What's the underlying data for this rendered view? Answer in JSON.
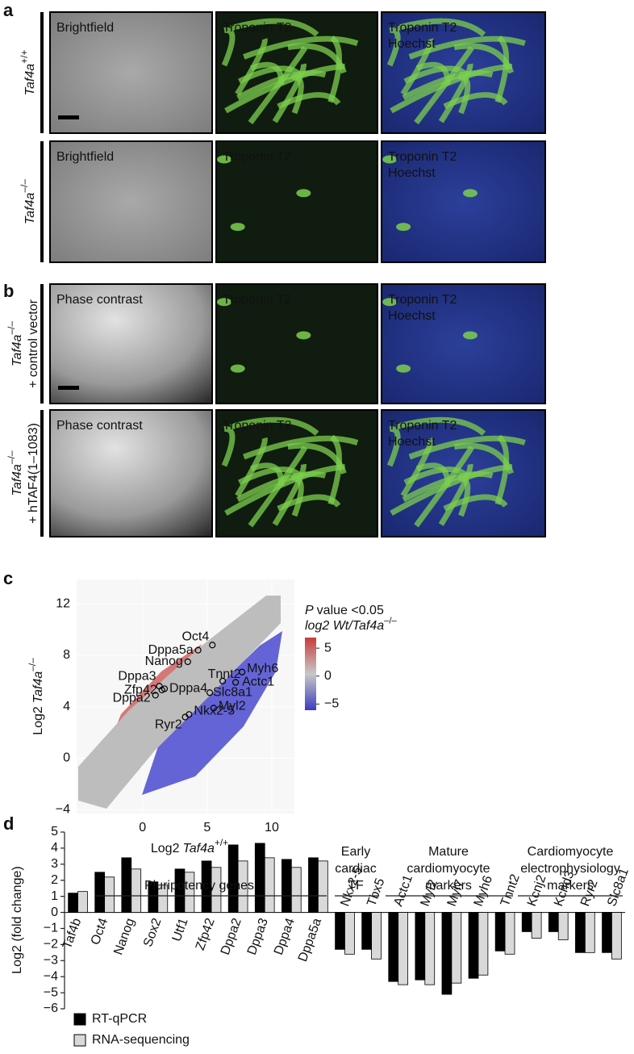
{
  "panels": {
    "a": {
      "label": "a",
      "rows": [
        {
          "genotype": {
            "gene": "Taf4a",
            "sup": "+/+"
          },
          "images": [
            [
              "Brightfield"
            ],
            [
              "Troponin T2"
            ],
            [
              "Troponin T2",
              "Hoechst"
            ]
          ]
        },
        {
          "genotype": {
            "gene": "Taf4a",
            "sup": "–/–"
          },
          "images": [
            [
              "Brightfield"
            ],
            [
              "Troponin T2"
            ],
            [
              "Troponin T2",
              "Hoechst"
            ]
          ]
        }
      ]
    },
    "b": {
      "label": "b",
      "rows": [
        {
          "genotype": {
            "gene": "Taf4a",
            "sup": "–/–"
          },
          "construct": "+ control vector",
          "images": [
            [
              "Phase contrast"
            ],
            [
              "Troponin T2"
            ],
            [
              "Troponin T2",
              "Hoechst"
            ]
          ]
        },
        {
          "genotype": {
            "gene": "Taf4a",
            "sup": "–/–"
          },
          "construct": "+ hTAF4(1–1083)",
          "images": [
            [
              "Phase contrast"
            ],
            [
              "Troponin T2"
            ],
            [
              "Troponin T2",
              "Hoechst"
            ]
          ]
        }
      ]
    }
  },
  "chart_data": [
    {
      "type": "scatter",
      "panel_label": "c",
      "xlabel": {
        "prefix": "Log2",
        "gene": "Taf4a",
        "sup": "+/+"
      },
      "ylabel": {
        "prefix": "Log2",
        "gene": "Taf4a",
        "sup": "–/–"
      },
      "xlim": [
        -5.1,
        11.75
      ],
      "ylim": [
        -4.3,
        13.9
      ],
      "xticks": [
        0,
        5,
        10
      ],
      "yticks": [
        {
          "value": -4,
          "label": "−4"
        },
        0,
        4,
        8,
        12
      ],
      "points": {
        "names": [
          "Oct4",
          "Dppa5a",
          "Nanog",
          "Tnnt2",
          "Myh6",
          "Actc1",
          "Slc8a1",
          "Dppa3",
          "Zfp42",
          "Dppa4",
          "Dppa2",
          "Myl2",
          "Nkx2-5",
          "Ryr2"
        ],
        "x": [
          5.4,
          4.3,
          3.5,
          6.2,
          7.7,
          7.2,
          5.2,
          1.3,
          1.5,
          1.7,
          1.0,
          5.5,
          3.6,
          3.3
        ],
        "y": [
          8.8,
          8.4,
          7.5,
          6.0,
          6.7,
          5.9,
          5.1,
          5.6,
          5.3,
          5.4,
          4.9,
          3.9,
          3.4,
          3.2
        ]
      },
      "colorbar": {
        "title": {
          "prefix": "P",
          "suffix": "value <0.05"
        },
        "subtitle": {
          "prefix": "log2 Wt/",
          "gene": "Taf4a",
          "sup": "–/–"
        },
        "lim": [
          -6.1,
          6.9
        ],
        "ticks": [
          5,
          0,
          {
            "value": -5,
            "label": "−5"
          }
        ]
      }
    },
    {
      "type": "bar",
      "panel_label": "d",
      "ylabel": "Log2 (fold change)",
      "categories": [
        "Taf4b",
        "Oct4",
        "Nanog",
        "Sox2",
        "Utf1",
        "Zfp42",
        "Dppa2",
        "Dppa3",
        "Dppa4",
        "Dppa5a",
        "Nkx2-5",
        "Tbx5",
        "Actc1",
        "Myl2",
        "Myl7",
        "Myh6",
        "Tnnt2",
        "Kcnj2",
        "Kcnd3",
        "Ryr2",
        "Slc8a1"
      ],
      "groups": [
        {
          "lines": [
            "Pluripotency genes"
          ]
        },
        {
          "lines": [
            "Early",
            "cardiac",
            "TF"
          ]
        },
        {
          "lines": [
            "Mature",
            "cardiomyocyte",
            "markers"
          ]
        },
        {
          "lines": [
            "Cardiomyocyte",
            "electrophysiology",
            "markers"
          ]
        }
      ],
      "series": [
        {
          "name": "RT-qPCR",
          "color": "#000000",
          "values": [
            1.2,
            2.5,
            3.4,
            1.9,
            2.7,
            3.2,
            4.2,
            4.3,
            3.3,
            3.4,
            -2.3,
            -2.3,
            -4.3,
            -4.2,
            -5.1,
            -4.1,
            -2.4,
            -1.2,
            -1.2,
            -2.5,
            -2.5
          ]
        },
        {
          "name": "RNA-sequencing",
          "color": "#d9d9d9",
          "values": [
            1.3,
            2.2,
            2.7,
            1.7,
            2.5,
            2.8,
            3.2,
            3.4,
            2.8,
            3.2,
            -2.6,
            -2.9,
            -4.5,
            -4.5,
            -4.4,
            -3.9,
            -2.6,
            -1.6,
            -1.7,
            -2.5,
            -2.9
          ]
        }
      ],
      "ylim": [
        -6,
        5
      ],
      "yticks": [
        5,
        4,
        3,
        2,
        1,
        0,
        {
          "value": -1,
          "label": "−1"
        },
        {
          "value": -2,
          "label": "−2"
        },
        {
          "value": -3,
          "label": "−3"
        },
        {
          "value": -4,
          "label": "−4"
        },
        {
          "value": -5,
          "label": "−5"
        },
        {
          "value": -6,
          "label": "−6"
        }
      ]
    }
  ]
}
